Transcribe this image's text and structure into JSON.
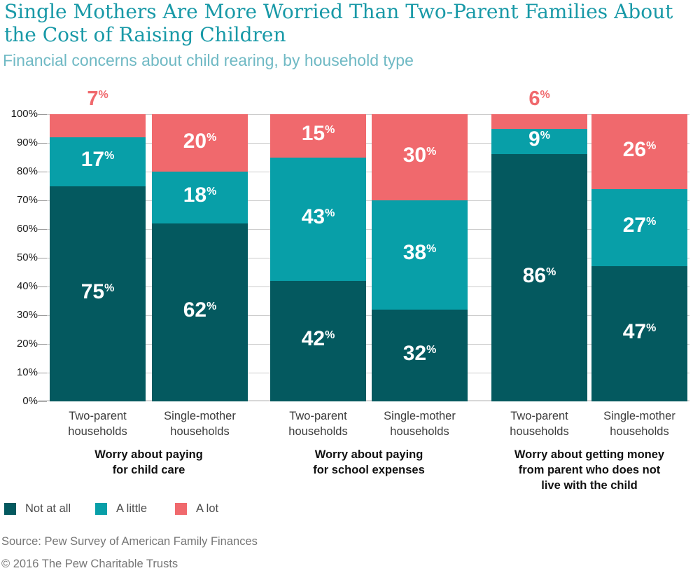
{
  "header": {
    "title_line1": "Single Mothers Are More Worried Than Two-Parent Families About",
    "title_line2": "the Cost of Raising Children",
    "subtitle": "Financial concerns about child rearing, by household type"
  },
  "colors": {
    "title": "#1899a7",
    "subtitle": "#6fb9c4",
    "not_at_all": "#04595f",
    "a_little": "#089fa8",
    "a_lot": "#f0696d",
    "gridline": "#cccccc",
    "axis_line": "#d8d8d8",
    "tick": "#9a9a9a"
  },
  "chart_data": {
    "type": "bar",
    "stacked": true,
    "unit": "%",
    "ylim": [
      0,
      100
    ],
    "ytick_interval": 10,
    "grid": true,
    "legend_position": "bottom",
    "series_names": [
      "Not at all",
      "A little",
      "A lot"
    ],
    "groups": [
      {
        "label_lines": [
          "Worry about paying",
          "for child care"
        ],
        "bars": [
          {
            "category_lines": [
              "Two-parent",
              "households"
            ],
            "not_at_all": 75,
            "a_little": 17,
            "a_lot": 7,
            "a_lot_label": "above"
          },
          {
            "category_lines": [
              "Single-mother",
              "households"
            ],
            "not_at_all": 62,
            "a_little": 18,
            "a_lot": 20,
            "a_lot_label": "inside"
          }
        ]
      },
      {
        "label_lines": [
          "Worry about paying",
          "for school expenses"
        ],
        "bars": [
          {
            "category_lines": [
              "Two-parent",
              "households"
            ],
            "not_at_all": 42,
            "a_little": 43,
            "a_lot": 15,
            "a_lot_label": "inside"
          },
          {
            "category_lines": [
              "Single-mother",
              "households"
            ],
            "not_at_all": 32,
            "a_little": 38,
            "a_lot": 30,
            "a_lot_label": "inside"
          }
        ]
      },
      {
        "label_lines": [
          "Worry about getting money",
          "from parent who does not",
          "live with the child"
        ],
        "bars": [
          {
            "category_lines": [
              "Two-parent",
              "households"
            ],
            "not_at_all": 86,
            "a_little": 9,
            "a_lot": 6,
            "a_lot_label": "above"
          },
          {
            "category_lines": [
              "Single-mother",
              "households"
            ],
            "not_at_all": 47,
            "a_little": 27,
            "a_lot": 26,
            "a_lot_label": "inside"
          }
        ]
      }
    ]
  },
  "legend": {
    "items": [
      {
        "label": "Not at all",
        "color": "#04595f"
      },
      {
        "label": "A little",
        "color": "#089fa8"
      },
      {
        "label": "A lot",
        "color": "#f0696d"
      }
    ]
  },
  "footer": {
    "source": "Source: Pew Survey of American Family Finances",
    "copyright": "© 2016 The Pew Charitable Trusts"
  }
}
